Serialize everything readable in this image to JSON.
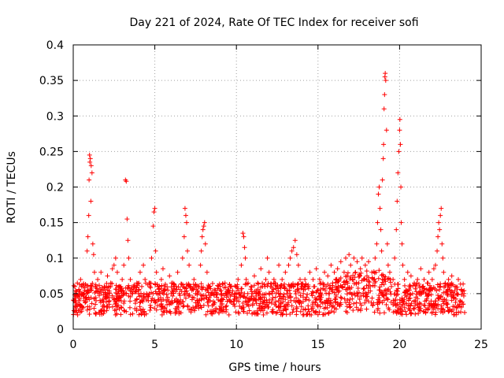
{
  "chart_data": {
    "type": "scatter",
    "title": "Day 221 of 2024, Rate Of TEC Index for receiver sofi",
    "xlabel": "GPS time / hours",
    "ylabel": "ROTI / TECUs",
    "xlim": [
      0,
      25
    ],
    "ylim": [
      0,
      0.4
    ],
    "xticks": [
      0,
      5,
      10,
      15,
      20,
      25
    ],
    "xtick_labels": [
      "0",
      "5",
      "10",
      "15",
      "20",
      "25"
    ],
    "yticks": [
      0,
      0.05,
      0.1,
      0.15,
      0.2,
      0.25,
      0.3,
      0.35,
      0.4
    ],
    "ytick_labels": [
      "0",
      "0.05",
      "0.1",
      "0.15",
      "0.2",
      "0.25",
      "0.3",
      "0.35",
      "0.4"
    ],
    "grid": true,
    "marker": "plus",
    "color": "#ff0000",
    "series": [
      {
        "name": "ROTI",
        "points": [
          [
            0.05,
            0.04
          ],
          [
            0.1,
            0.06
          ],
          [
            0.15,
            0.03
          ],
          [
            0.2,
            0.05
          ],
          [
            0.25,
            0.065
          ],
          [
            0.3,
            0.045
          ],
          [
            0.35,
            0.055
          ],
          [
            0.4,
            0.035
          ],
          [
            0.45,
            0.07
          ],
          [
            0.5,
            0.05
          ],
          [
            0.55,
            0.03
          ],
          [
            0.6,
            0.06
          ],
          [
            0.65,
            0.04
          ],
          [
            0.7,
            0.055
          ],
          [
            0.8,
            0.045
          ],
          [
            0.85,
            0.11
          ],
          [
            0.9,
            0.13
          ],
          [
            0.95,
            0.16
          ],
          [
            0.97,
            0.21
          ],
          [
            1.0,
            0.245
          ],
          [
            1.02,
            0.235
          ],
          [
            1.05,
            0.24
          ],
          [
            1.08,
            0.18
          ],
          [
            1.1,
            0.23
          ],
          [
            1.15,
            0.22
          ],
          [
            1.2,
            0.12
          ],
          [
            1.25,
            0.105
          ],
          [
            1.3,
            0.08
          ],
          [
            1.35,
            0.06
          ],
          [
            1.4,
            0.04
          ],
          [
            1.5,
            0.07
          ],
          [
            1.6,
            0.05
          ],
          [
            1.7,
            0.08
          ],
          [
            1.8,
            0.04
          ],
          [
            1.9,
            0.06
          ],
          [
            2.0,
            0.05
          ],
          [
            2.1,
            0.075
          ],
          [
            2.2,
            0.035
          ],
          [
            2.3,
            0.065
          ],
          [
            2.4,
            0.085
          ],
          [
            2.5,
            0.09
          ],
          [
            2.6,
            0.1
          ],
          [
            2.7,
            0.08
          ],
          [
            2.8,
            0.06
          ],
          [
            2.9,
            0.045
          ],
          [
            3.0,
            0.07
          ],
          [
            3.1,
            0.09
          ],
          [
            3.2,
            0.21
          ],
          [
            3.25,
            0.208
          ],
          [
            3.3,
            0.155
          ],
          [
            3.35,
            0.125
          ],
          [
            3.4,
            0.1
          ],
          [
            3.5,
            0.07
          ],
          [
            3.6,
            0.05
          ],
          [
            3.7,
            0.06
          ],
          [
            3.8,
            0.04
          ],
          [
            3.9,
            0.065
          ],
          [
            4.0,
            0.05
          ],
          [
            4.1,
            0.08
          ],
          [
            4.2,
            0.06
          ],
          [
            4.3,
            0.09
          ],
          [
            4.4,
            0.07
          ],
          [
            4.5,
            0.05
          ],
          [
            4.6,
            0.04
          ],
          [
            4.7,
            0.06
          ],
          [
            4.8,
            0.1
          ],
          [
            4.9,
            0.145
          ],
          [
            4.95,
            0.165
          ],
          [
            5.0,
            0.17
          ],
          [
            5.05,
            0.11
          ],
          [
            5.1,
            0.08
          ],
          [
            5.2,
            0.06
          ],
          [
            5.3,
            0.05
          ],
          [
            5.4,
            0.07
          ],
          [
            5.5,
            0.085
          ],
          [
            5.6,
            0.06
          ],
          [
            5.7,
            0.04
          ],
          [
            5.8,
            0.055
          ],
          [
            5.9,
            0.075
          ],
          [
            6.0,
            0.05
          ],
          [
            6.1,
            0.065
          ],
          [
            6.2,
            0.04
          ],
          [
            6.3,
            0.06
          ],
          [
            6.4,
            0.08
          ],
          [
            6.5,
            0.05
          ],
          [
            6.7,
            0.1
          ],
          [
            6.8,
            0.13
          ],
          [
            6.85,
            0.17
          ],
          [
            6.9,
            0.16
          ],
          [
            6.95,
            0.15
          ],
          [
            7.0,
            0.11
          ],
          [
            7.1,
            0.09
          ],
          [
            7.2,
            0.06
          ],
          [
            7.3,
            0.045
          ],
          [
            7.4,
            0.07
          ],
          [
            7.5,
            0.05
          ],
          [
            7.6,
            0.04
          ],
          [
            7.7,
            0.06
          ],
          [
            7.8,
            0.09
          ],
          [
            7.85,
            0.11
          ],
          [
            7.9,
            0.13
          ],
          [
            7.95,
            0.14
          ],
          [
            8.0,
            0.145
          ],
          [
            8.05,
            0.15
          ],
          [
            8.1,
            0.12
          ],
          [
            8.2,
            0.08
          ],
          [
            8.3,
            0.06
          ],
          [
            8.4,
            0.04
          ],
          [
            8.5,
            0.05
          ],
          [
            8.6,
            0.035
          ],
          [
            8.7,
            0.055
          ],
          [
            8.8,
            0.045
          ],
          [
            8.9,
            0.06
          ],
          [
            9.0,
            0.04
          ],
          [
            9.1,
            0.05
          ],
          [
            9.2,
            0.03
          ],
          [
            9.3,
            0.065
          ],
          [
            9.4,
            0.045
          ],
          [
            9.5,
            0.055
          ],
          [
            9.6,
            0.04
          ],
          [
            9.7,
            0.06
          ],
          [
            9.8,
            0.035
          ],
          [
            9.9,
            0.05
          ],
          [
            10.0,
            0.045
          ],
          [
            10.1,
            0.07
          ],
          [
            10.2,
            0.05
          ],
          [
            10.3,
            0.09
          ],
          [
            10.4,
            0.135
          ],
          [
            10.45,
            0.13
          ],
          [
            10.5,
            0.115
          ],
          [
            10.55,
            0.1
          ],
          [
            10.6,
            0.07
          ],
          [
            10.7,
            0.05
          ],
          [
            10.8,
            0.04
          ],
          [
            10.9,
            0.06
          ],
          [
            11.0,
            0.05
          ],
          [
            11.1,
            0.075
          ],
          [
            11.2,
            0.04
          ],
          [
            11.3,
            0.065
          ],
          [
            11.4,
            0.05
          ],
          [
            11.5,
            0.085
          ],
          [
            11.6,
            0.06
          ],
          [
            11.7,
            0.045
          ],
          [
            11.8,
            0.07
          ],
          [
            11.9,
            0.1
          ],
          [
            12.0,
            0.08
          ],
          [
            12.1,
            0.06
          ],
          [
            12.2,
            0.05
          ],
          [
            12.3,
            0.07
          ],
          [
            12.4,
            0.045
          ],
          [
            12.5,
            0.06
          ],
          [
            12.6,
            0.09
          ],
          [
            12.7,
            0.05
          ],
          [
            12.8,
            0.07
          ],
          [
            12.9,
            0.06
          ],
          [
            13.0,
            0.08
          ],
          [
            13.1,
            0.05
          ],
          [
            13.2,
            0.09
          ],
          [
            13.3,
            0.1
          ],
          [
            13.4,
            0.11
          ],
          [
            13.5,
            0.115
          ],
          [
            13.6,
            0.125
          ],
          [
            13.7,
            0.105
          ],
          [
            13.8,
            0.09
          ],
          [
            13.9,
            0.07
          ],
          [
            14.0,
            0.06
          ],
          [
            14.1,
            0.05
          ],
          [
            14.2,
            0.07
          ],
          [
            14.3,
            0.045
          ],
          [
            14.4,
            0.06
          ],
          [
            14.5,
            0.08
          ],
          [
            14.6,
            0.05
          ],
          [
            14.7,
            0.07
          ],
          [
            14.8,
            0.06
          ],
          [
            14.9,
            0.085
          ],
          [
            15.0,
            0.055
          ],
          [
            15.1,
            0.07
          ],
          [
            15.2,
            0.045
          ],
          [
            15.3,
            0.065
          ],
          [
            15.4,
            0.08
          ],
          [
            15.5,
            0.06
          ],
          [
            15.6,
            0.075
          ],
          [
            15.7,
            0.05
          ],
          [
            15.8,
            0.09
          ],
          [
            15.9,
            0.065
          ],
          [
            16.0,
            0.08
          ],
          [
            16.1,
            0.06
          ],
          [
            16.2,
            0.085
          ],
          [
            16.3,
            0.07
          ],
          [
            16.4,
            0.095
          ],
          [
            16.5,
            0.06
          ],
          [
            16.6,
            0.08
          ],
          [
            16.7,
            0.1
          ],
          [
            16.8,
            0.075
          ],
          [
            16.9,
            0.105
          ],
          [
            17.0,
            0.09
          ],
          [
            17.1,
            0.07
          ],
          [
            17.2,
            0.1
          ],
          [
            17.3,
            0.08
          ],
          [
            17.4,
            0.095
          ],
          [
            17.5,
            0.065
          ],
          [
            17.6,
            0.085
          ],
          [
            17.7,
            0.1
          ],
          [
            17.8,
            0.07
          ],
          [
            17.9,
            0.09
          ],
          [
            18.0,
            0.075
          ],
          [
            18.1,
            0.095
          ],
          [
            18.2,
            0.06
          ],
          [
            18.3,
            0.08
          ],
          [
            18.4,
            0.07
          ],
          [
            18.5,
            0.1
          ],
          [
            18.6,
            0.12
          ],
          [
            18.65,
            0.15
          ],
          [
            18.7,
            0.19
          ],
          [
            18.75,
            0.2
          ],
          [
            18.8,
            0.17
          ],
          [
            18.85,
            0.14
          ],
          [
            18.9,
            0.11
          ],
          [
            18.95,
            0.21
          ],
          [
            19.0,
            0.24
          ],
          [
            19.02,
            0.26
          ],
          [
            19.05,
            0.31
          ],
          [
            19.08,
            0.33
          ],
          [
            19.1,
            0.355
          ],
          [
            19.12,
            0.36
          ],
          [
            19.15,
            0.35
          ],
          [
            19.2,
            0.28
          ],
          [
            19.25,
            0.12
          ],
          [
            19.3,
            0.09
          ],
          [
            19.4,
            0.08
          ],
          [
            19.5,
            0.06
          ],
          [
            19.6,
            0.07
          ],
          [
            19.7,
            0.1
          ],
          [
            19.8,
            0.14
          ],
          [
            19.85,
            0.18
          ],
          [
            19.9,
            0.22
          ],
          [
            19.95,
            0.25
          ],
          [
            20.0,
            0.28
          ],
          [
            20.02,
            0.295
          ],
          [
            20.05,
            0.26
          ],
          [
            20.08,
            0.2
          ],
          [
            20.1,
            0.15
          ],
          [
            20.15,
            0.12
          ],
          [
            20.2,
            0.09
          ],
          [
            20.3,
            0.07
          ],
          [
            20.4,
            0.055
          ],
          [
            20.5,
            0.08
          ],
          [
            20.6,
            0.06
          ],
          [
            20.7,
            0.075
          ],
          [
            20.8,
            0.05
          ],
          [
            20.9,
            0.065
          ],
          [
            21.0,
            0.045
          ],
          [
            21.1,
            0.07
          ],
          [
            21.2,
            0.05
          ],
          [
            21.3,
            0.085
          ],
          [
            21.4,
            0.06
          ],
          [
            21.5,
            0.07
          ],
          [
            21.6,
            0.05
          ],
          [
            21.7,
            0.065
          ],
          [
            21.8,
            0.08
          ],
          [
            21.9,
            0.055
          ],
          [
            22.0,
            0.07
          ],
          [
            22.1,
            0.085
          ],
          [
            22.2,
            0.09
          ],
          [
            22.3,
            0.11
          ],
          [
            22.35,
            0.13
          ],
          [
            22.4,
            0.15
          ],
          [
            22.45,
            0.14
          ],
          [
            22.5,
            0.16
          ],
          [
            22.55,
            0.17
          ],
          [
            22.6,
            0.12
          ],
          [
            22.65,
            0.1
          ],
          [
            22.7,
            0.08
          ],
          [
            22.8,
            0.065
          ],
          [
            22.9,
            0.05
          ],
          [
            23.0,
            0.07
          ],
          [
            23.1,
            0.055
          ],
          [
            23.2,
            0.075
          ],
          [
            23.3,
            0.045
          ],
          [
            23.4,
            0.06
          ],
          [
            23.5,
            0.05
          ],
          [
            23.6,
            0.07
          ],
          [
            23.7,
            0.04
          ],
          [
            23.8,
            0.055
          ],
          [
            23.9,
            0.035
          ],
          [
            23.95,
            0.05
          ]
        ]
      }
    ]
  }
}
